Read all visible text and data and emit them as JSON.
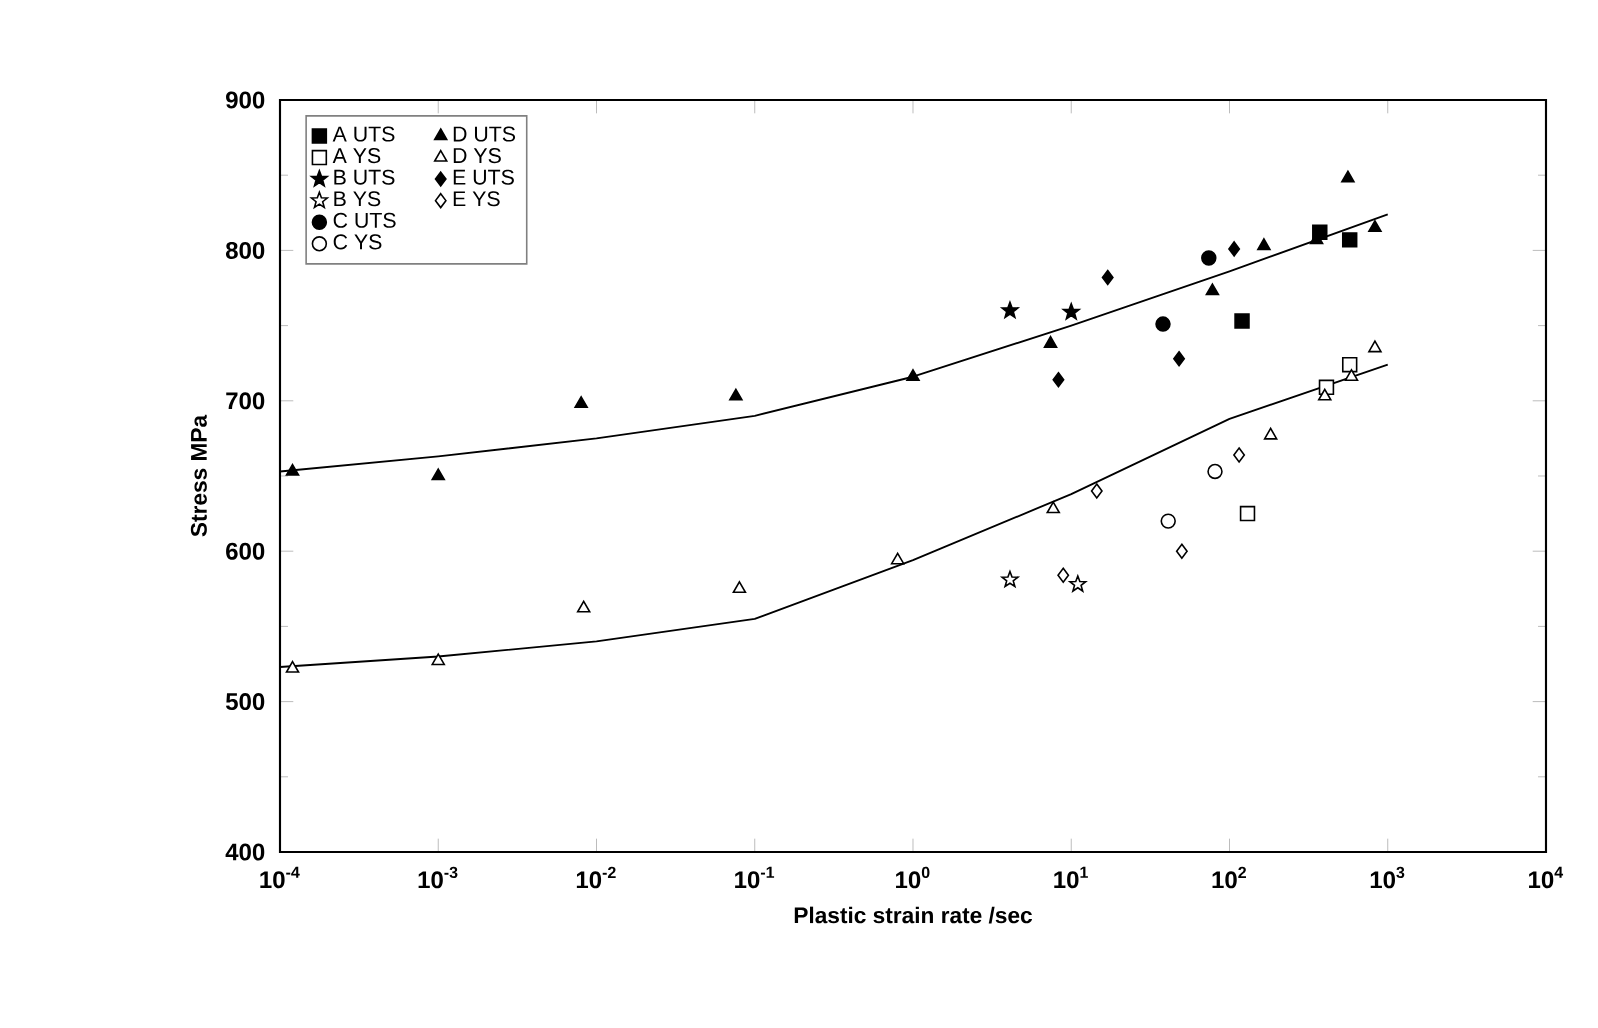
{
  "chart_data": {
    "type": "scatter",
    "xlabel": "Plastic strain rate /sec",
    "ylabel": "Stress MPa",
    "log": "x",
    "legend": "top left",
    "grid": false,
    "xlim": [
      0.0001,
      10000
    ],
    "ylim": [
      400,
      900
    ],
    "xticks": [
      {
        "value": 0.0001,
        "label": "10$^{-4}$"
      },
      {
        "value": 0.001,
        "label": "10$^{-3}$"
      },
      {
        "value": 0.01,
        "label": "10$^{-2}$"
      },
      {
        "value": 0.1,
        "label": "10$^{-1}$"
      },
      {
        "value": 1,
        "label": "10$^{0}$"
      },
      {
        "value": 10,
        "label": "10$^{1}$"
      },
      {
        "value": 100,
        "label": "10$^{2}$"
      },
      {
        "value": 1000,
        "label": "10$^{3}$"
      },
      {
        "value": 10000,
        "label": "10$^{4}$"
      }
    ],
    "yticks": [
      400,
      500,
      600,
      700,
      800,
      900
    ],
    "series": [
      {
        "name": "A UTS",
        "marker": "square",
        "color": "#000000",
        "x": [
          120,
          372,
          575
        ],
        "values": [
          753,
          812,
          807
        ]
      },
      {
        "name": "A YS",
        "marker": "square",
        "color": "#ffffff",
        "x": [
          130,
          410,
          575
        ],
        "values": [
          625,
          709,
          724
        ]
      },
      {
        "name": "B UTS",
        "marker": "star",
        "color": "#000000",
        "x": [
          4.1,
          10
        ],
        "values": [
          760,
          759
        ]
      },
      {
        "name": "B YS",
        "marker": "star",
        "color": "#ffffff",
        "x": [
          4.1,
          11
        ],
        "values": [
          581,
          578
        ]
      },
      {
        "name": "C UTS",
        "marker": "circle",
        "color": "#000000",
        "x": [
          38,
          74
        ],
        "values": [
          751,
          795
        ]
      },
      {
        "name": "C YS",
        "marker": "circle",
        "color": "#ffffff",
        "x": [
          41,
          81
        ],
        "values": [
          620,
          653
        ]
      },
      {
        "name": "D UTS",
        "marker": "triangle",
        "color": "#000000",
        "x": [
          0.00012,
          0.001,
          0.008,
          0.076,
          1,
          7.4,
          78,
          165,
          355,
          560,
          830
        ],
        "values": [
          653,
          650,
          698,
          703,
          716,
          738,
          773,
          803,
          807,
          848,
          815
        ]
      },
      {
        "name": "D YS",
        "marker": "triangle",
        "color": "#ffffff",
        "x": [
          0.00012,
          0.001,
          0.0083,
          0.08,
          0.8,
          7.7,
          182,
          400,
          590,
          830
        ],
        "values": [
          522,
          527,
          562,
          575,
          594,
          628,
          677,
          703,
          716,
          735
        ]
      },
      {
        "name": "E UTS",
        "marker": "diamond",
        "color": "#000000",
        "x": [
          8.3,
          17,
          48,
          107
        ],
        "values": [
          714,
          782,
          728,
          801
        ]
      },
      {
        "name": "E YS",
        "marker": "diamond",
        "color": "#ffffff",
        "x": [
          8.9,
          14.5,
          50,
          115
        ],
        "values": [
          584,
          640,
          600,
          664
        ]
      },
      {
        "type": "line",
        "marker": "none",
        "color": "#000000",
        "x": [
          0.0001,
          0.001,
          0.01,
          0.1,
          1,
          10,
          100,
          1000
        ],
        "values": [
          653,
          663,
          675,
          690,
          716,
          750,
          786,
          824
        ]
      },
      {
        "type": "line",
        "marker": "none",
        "color": "#000000",
        "x": [
          0.0001,
          0.001,
          0.01,
          0.1,
          1,
          10,
          100,
          1000
        ],
        "values": [
          523,
          530,
          540,
          555,
          594,
          638,
          688,
          724
        ]
      }
    ]
  }
}
